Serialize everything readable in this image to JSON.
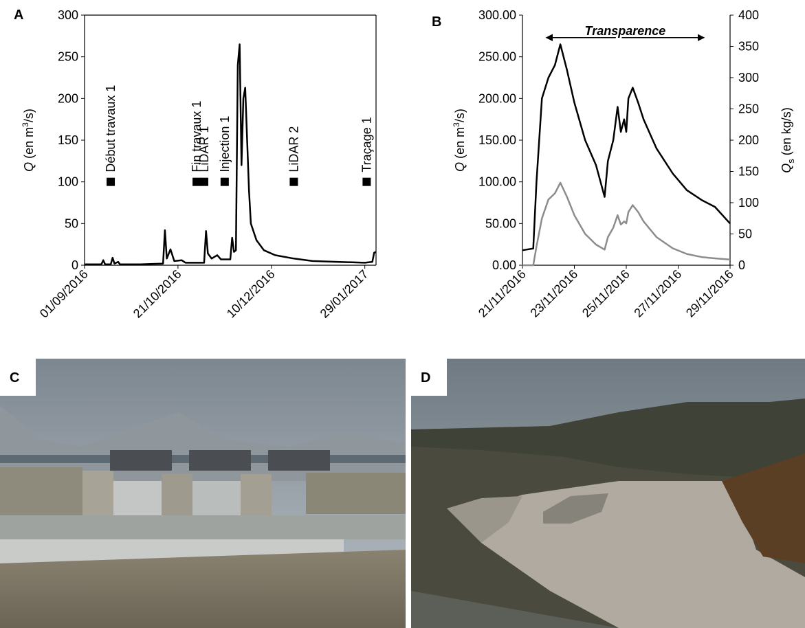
{
  "chart_data": [
    {
      "type": "line",
      "label": "A",
      "ylabel": {
        "symbol": "Q",
        "unit_start": "(en m",
        "unit_power": "3",
        "unit_end": "/s)"
      },
      "xlim": [
        "2016-09-01",
        "2017-02-04"
      ],
      "xticks": [
        {
          "value": "2016-09-01",
          "label": "01/09/2016"
        },
        {
          "value": "2016-10-21",
          "label": "21/10/2016"
        },
        {
          "value": "2016-12-10",
          "label": "10/12/2016"
        },
        {
          "value": "2017-01-29",
          "label": "29/01/2017"
        }
      ],
      "ylim": [
        0,
        300
      ],
      "yticks": [
        0,
        50,
        100,
        150,
        200,
        250,
        300
      ],
      "color": "#000000",
      "x": [
        "2016-09-01",
        "2016-09-10",
        "2016-09-11",
        "2016-09-12",
        "2016-09-15",
        "2016-09-16",
        "2016-09-17",
        "2016-09-19",
        "2016-09-20",
        "2016-10-01",
        "2016-10-13",
        "2016-10-14",
        "2016-10-15",
        "2016-10-17",
        "2016-10-19",
        "2016-10-23",
        "2016-10-25",
        "2016-11-04",
        "2016-11-05",
        "2016-11-06",
        "2016-11-08",
        "2016-11-11",
        "2016-11-13",
        "2016-11-18",
        "2016-11-19",
        "2016-11-20",
        "2016-11-21",
        "2016-11-22",
        "2016-11-23",
        "2016-11-24",
        "2016-11-25",
        "2016-11-26",
        "2016-11-27",
        "2016-11-28",
        "2016-11-29",
        "2016-12-02",
        "2016-12-06",
        "2016-12-12",
        "2016-12-22",
        "2017-01-01",
        "2017-01-14",
        "2017-01-29",
        "2017-02-02",
        "2017-02-03",
        "2017-02-04"
      ],
      "values": [
        1,
        1,
        6,
        1,
        1,
        9,
        2,
        4,
        1,
        1,
        2,
        42,
        8,
        19,
        5,
        6,
        3,
        3,
        41,
        14,
        8,
        12,
        7,
        7,
        33,
        16,
        18,
        240,
        265,
        120,
        200,
        213,
        150,
        90,
        50,
        30,
        18,
        12,
        8,
        5,
        4,
        3,
        4,
        15,
        16
      ],
      "markers": [
        {
          "label": "Début travaux 1",
          "x": "2016-09-15",
          "value": 100
        },
        {
          "label": "Fin travaux 1",
          "x": "2016-10-31",
          "value": 100
        },
        {
          "label": "LiDAR 1",
          "x": "2016-11-04",
          "value": 100
        },
        {
          "label": "Injection 1",
          "x": "2016-11-15",
          "value": 100
        },
        {
          "label": "LiDAR 2",
          "x": "2016-12-22",
          "value": 100
        },
        {
          "label": "Traçage 1",
          "x": "2017-01-30",
          "value": 100
        }
      ]
    },
    {
      "type": "line",
      "label": "B",
      "ylabel": {
        "symbol": "Q",
        "unit_start": "(en m",
        "unit_power": "3",
        "unit_end": "/s)"
      },
      "y2label": {
        "symbol": "Q",
        "subscript": "s",
        "unit": "(en kg/s)"
      },
      "xlim": [
        "2016-11-21",
        "2016-11-29"
      ],
      "xticks": [
        {
          "value": "2016-11-21",
          "label": "21/11/2016"
        },
        {
          "value": "2016-11-23",
          "label": "23/11/2016"
        },
        {
          "value": "2016-11-25",
          "label": "25/11/2016"
        },
        {
          "value": "2016-11-27",
          "label": "27/11/2016"
        },
        {
          "value": "2016-11-29",
          "label": "29/11/2016"
        }
      ],
      "ylim": [
        0,
        300
      ],
      "yticks": [
        {
          "value": 0,
          "label": "0.00"
        },
        {
          "value": 50,
          "label": "50.00"
        },
        {
          "value": 100,
          "label": "100.00"
        },
        {
          "value": 150,
          "label": "150.00"
        },
        {
          "value": 200,
          "label": "200.00"
        },
        {
          "value": 250,
          "label": "250.00"
        },
        {
          "value": 300,
          "label": "300.00"
        }
      ],
      "y2lim": [
        0,
        400
      ],
      "y2ticks": [
        0,
        50,
        100,
        150,
        200,
        250,
        300,
        350,
        400
      ],
      "x": [
        "2016-11-21T00:00",
        "2016-11-21T10:00",
        "2016-11-21T13:00",
        "2016-11-21T18:00",
        "2016-11-22T00:00",
        "2016-11-22T06:00",
        "2016-11-22T11:00",
        "2016-11-22T17:00",
        "2016-11-23T00:00",
        "2016-11-23T10:00",
        "2016-11-23T20:00",
        "2016-11-24T04:00",
        "2016-11-24T07:00",
        "2016-11-24T12:00",
        "2016-11-24T16:00",
        "2016-11-24T19:00",
        "2016-11-24T22:00",
        "2016-11-25T00:00",
        "2016-11-25T02:00",
        "2016-11-25T06:00",
        "2016-11-25T11:00",
        "2016-11-25T16:00",
        "2016-11-26T04:00",
        "2016-11-26T19:00",
        "2016-11-27T08:00",
        "2016-11-27T22:00",
        "2016-11-28T10:00",
        "2016-11-29T00:00"
      ],
      "series": [
        {
          "color": "#000000",
          "values": [
            18,
            20,
            100,
            200,
            225,
            240,
            265,
            235,
            195,
            150,
            120,
            82,
            125,
            150,
            190,
            160,
            175,
            160,
            200,
            213,
            195,
            175,
            140,
            110,
            90,
            78,
            70,
            50
          ]
        },
        {
          "color": "#8c8c8c",
          "axis": "y2",
          "values": [
            0,
            0,
            30,
            75,
            105,
            115,
            132,
            110,
            80,
            50,
            33,
            25,
            45,
            60,
            80,
            65,
            70,
            67,
            85,
            96,
            85,
            70,
            45,
            27,
            18,
            13,
            11,
            9
          ]
        }
      ],
      "annotation": {
        "text": "Transparence",
        "start": "2016-11-21T22:00",
        "end": "2016-11-28T00:00",
        "value": 273
      }
    }
  ],
  "photos": [
    {
      "label": "C"
    },
    {
      "label": "D"
    }
  ]
}
